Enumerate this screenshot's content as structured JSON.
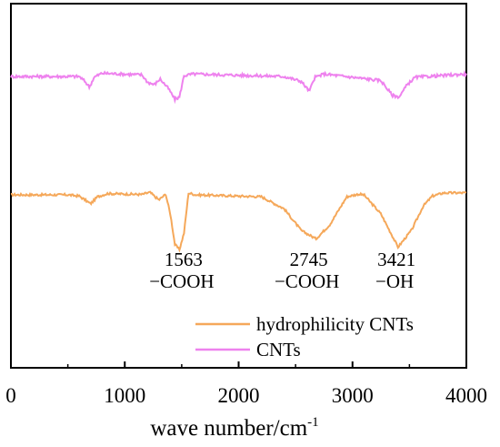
{
  "chart_data": {
    "type": "line",
    "title": "",
    "xlabel": "wave number/cm",
    "xlabel_superscript": "-1",
    "ylabel": "",
    "xlim": [
      0,
      4000
    ],
    "x_ticks": [
      0,
      1000,
      2000,
      3000,
      4000
    ],
    "x_tick_labels": [
      "0",
      "1000",
      "2000",
      "3000",
      "4000"
    ],
    "y_ticks": [],
    "grid": false,
    "legend_position": "lower-right",
    "series": [
      {
        "name": "hydrophilicity CNTs",
        "color": "#f5a85a",
        "baseline": 0,
        "points": [
          [
            0,
            0.0
          ],
          [
            500,
            0.0
          ],
          [
            600,
            -0.2
          ],
          [
            700,
            -1.4
          ],
          [
            760,
            -0.3
          ],
          [
            850,
            0.2
          ],
          [
            1150,
            0.05
          ],
          [
            1220,
            0.4
          ],
          [
            1300,
            -0.8
          ],
          [
            1360,
            0.1
          ],
          [
            1400,
            -3.0
          ],
          [
            1440,
            -7.8
          ],
          [
            1480,
            -8.6
          ],
          [
            1520,
            -6.0
          ],
          [
            1560,
            0.3
          ],
          [
            1620,
            0.0
          ],
          [
            2200,
            -0.3
          ],
          [
            2400,
            -2.2
          ],
          [
            2550,
            -5.6
          ],
          [
            2680,
            -6.9
          ],
          [
            2800,
            -4.7
          ],
          [
            2950,
            -0.3
          ],
          [
            3050,
            0.1
          ],
          [
            3100,
            0.0
          ],
          [
            3250,
            -3.0
          ],
          [
            3400,
            -8.2
          ],
          [
            3520,
            -5.5
          ],
          [
            3620,
            -1.8
          ],
          [
            3700,
            -0.2
          ],
          [
            3800,
            0.3
          ],
          [
            4000,
            0.3
          ]
        ]
      },
      {
        "name": "CNTs",
        "color": "#ee82ee",
        "baseline": 1,
        "points": [
          [
            0,
            0.0
          ],
          [
            600,
            0.0
          ],
          [
            650,
            -0.6
          ],
          [
            690,
            -1.3
          ],
          [
            730,
            -0.1
          ],
          [
            800,
            0.4
          ],
          [
            1150,
            0.2
          ],
          [
            1200,
            -0.7
          ],
          [
            1260,
            -1.0
          ],
          [
            1310,
            -0.3
          ],
          [
            1380,
            -1.4
          ],
          [
            1440,
            -2.8
          ],
          [
            1480,
            -2.5
          ],
          [
            1520,
            0.1
          ],
          [
            1600,
            0.3
          ],
          [
            2400,
            0.0
          ],
          [
            2550,
            -0.6
          ],
          [
            2620,
            -1.8
          ],
          [
            2670,
            -0.1
          ],
          [
            2750,
            0.3
          ],
          [
            3250,
            -0.5
          ],
          [
            3350,
            -2.3
          ],
          [
            3410,
            -2.5
          ],
          [
            3480,
            -1.0
          ],
          [
            3550,
            -0.1
          ],
          [
            4000,
            0.3
          ]
        ]
      }
    ],
    "annotations": [
      {
        "line1": "1563",
        "line2": "−COOH",
        "x": 1500
      },
      {
        "line1": "2745",
        "line2": "−COOH",
        "x": 2600
      },
      {
        "line1": "3421",
        "line2": "−OH",
        "x": 3370
      }
    ]
  }
}
